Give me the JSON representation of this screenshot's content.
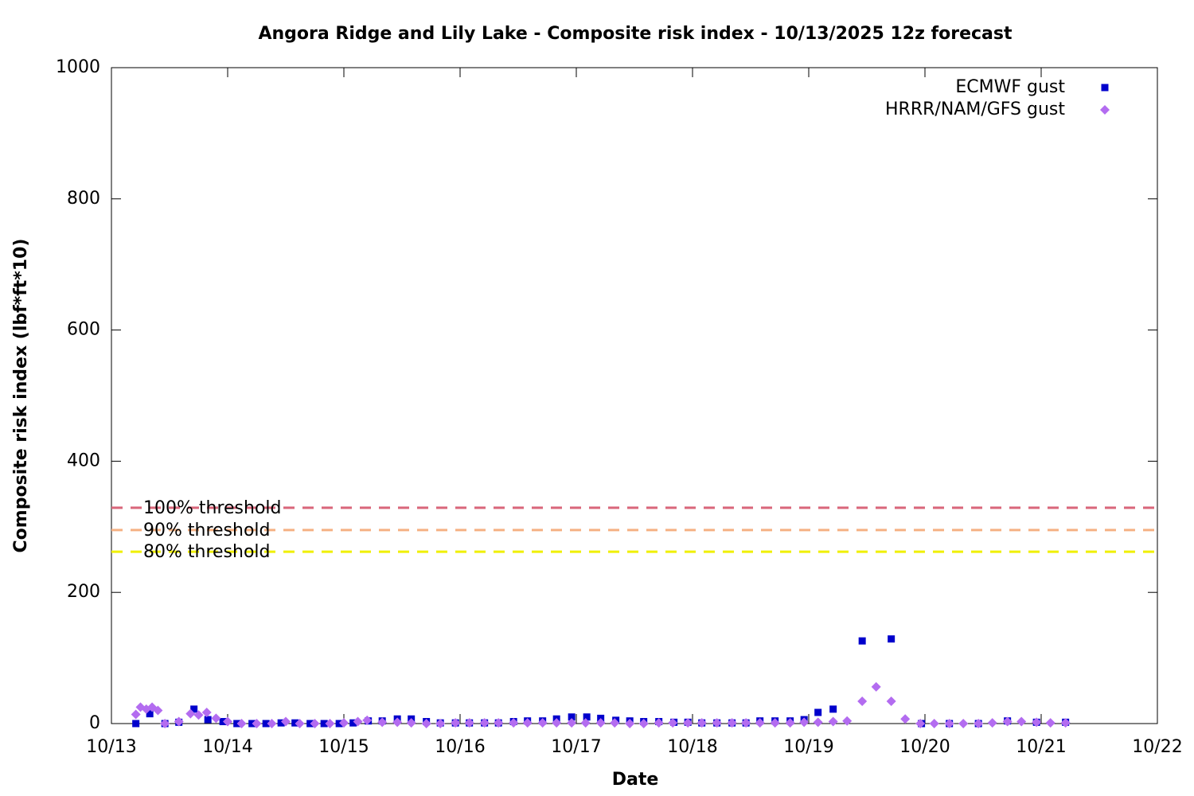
{
  "chart_data": {
    "type": "scatter",
    "title": "Angora Ridge and Lily Lake - Composite risk index - 10/13/2025 12z forecast",
    "x_label": "Date",
    "y_label": "Composite risk index (lbf*ft*10)",
    "xlim": [
      13,
      22
    ],
    "xticks": [
      {
        "value": 13,
        "label": "10/13"
      },
      {
        "value": 14,
        "label": "10/14"
      },
      {
        "value": 15,
        "label": "10/15"
      },
      {
        "value": 16,
        "label": "10/16"
      },
      {
        "value": 17,
        "label": "10/17"
      },
      {
        "value": 18,
        "label": "10/18"
      },
      {
        "value": 19,
        "label": "10/19"
      },
      {
        "value": 20,
        "label": "10/20"
      },
      {
        "value": 21,
        "label": "10/21"
      },
      {
        "value": 22,
        "label": "10/22"
      }
    ],
    "ylim": [
      0,
      1000
    ],
    "yticks": [
      0,
      200,
      400,
      600,
      800,
      1000
    ],
    "grid": false,
    "legend": "top-right",
    "thresholds": [
      {
        "name": "100% threshold",
        "value": 329,
        "color": "#d9667a"
      },
      {
        "name": "90% threshold",
        "value": 295,
        "color": "#f5b183"
      },
      {
        "name": "80% threshold",
        "value": 262,
        "color": "#f0f000"
      }
    ],
    "series": [
      {
        "name": "ECMWF gust",
        "color": "#0000cc",
        "marker": "square",
        "x": [
          13.21,
          13.33,
          13.46,
          13.58,
          13.71,
          13.83,
          13.96,
          14.08,
          14.21,
          14.33,
          14.46,
          14.58,
          14.71,
          14.83,
          14.96,
          15.08,
          15.21,
          15.33,
          15.46,
          15.58,
          15.71,
          15.83,
          15.96,
          16.08,
          16.21,
          16.33,
          16.46,
          16.58,
          16.71,
          16.83,
          16.96,
          17.09,
          17.21,
          17.34,
          17.46,
          17.58,
          17.71,
          17.84,
          17.96,
          18.08,
          18.21,
          18.34,
          18.46,
          18.58,
          18.71,
          18.84,
          18.96,
          19.08,
          19.21,
          19.46,
          19.71,
          19.97,
          20.21,
          20.46,
          20.71,
          20.96,
          21.21
        ],
        "values": [
          0,
          15,
          0,
          2,
          22,
          6,
          3,
          0,
          0,
          0,
          1,
          1,
          0,
          0,
          0,
          1,
          4,
          4,
          7,
          7,
          3,
          1,
          1,
          1,
          1,
          1,
          3,
          4,
          4,
          7,
          10,
          10,
          8,
          5,
          4,
          3,
          3,
          2,
          2,
          1,
          1,
          1,
          1,
          4,
          4,
          4,
          6,
          17,
          22,
          126,
          129,
          0,
          0,
          0,
          4,
          2,
          2
        ]
      },
      {
        "name": "HRRR/NAM/GFS gust",
        "color": "#b36cf0",
        "marker": "diamond",
        "x": [
          13.21,
          13.25,
          13.3,
          13.35,
          13.4,
          13.46,
          13.58,
          13.68,
          13.75,
          13.82,
          13.9,
          14.0,
          14.12,
          14.25,
          14.38,
          14.5,
          14.62,
          14.75,
          14.88,
          15.0,
          15.12,
          15.2,
          15.33,
          15.46,
          15.58,
          15.71,
          15.83,
          15.96,
          16.08,
          16.21,
          16.33,
          16.46,
          16.58,
          16.71,
          16.83,
          16.96,
          17.08,
          17.21,
          17.33,
          17.46,
          17.58,
          17.71,
          17.83,
          17.96,
          18.08,
          18.21,
          18.34,
          18.46,
          18.58,
          18.71,
          18.84,
          18.96,
          19.08,
          19.21,
          19.33,
          19.46,
          19.58,
          19.71,
          19.83,
          19.96,
          20.08,
          20.21,
          20.33,
          20.46,
          20.58,
          20.71,
          20.83,
          20.96,
          21.08,
          21.21
        ],
        "values": [
          14,
          25,
          22,
          25,
          20,
          0,
          3,
          15,
          13,
          17,
          8,
          3,
          0,
          0,
          0,
          3,
          0,
          0,
          0,
          1,
          3,
          5,
          2,
          2,
          1,
          0,
          0,
          1,
          1,
          1,
          1,
          1,
          1,
          1,
          1,
          1,
          1,
          1,
          1,
          0,
          0,
          1,
          1,
          1,
          1,
          1,
          1,
          1,
          1,
          1,
          1,
          2,
          2,
          3,
          4,
          34,
          56,
          34,
          7,
          0,
          0,
          0,
          0,
          0,
          1,
          3,
          3,
          2,
          1,
          1
        ]
      }
    ]
  }
}
